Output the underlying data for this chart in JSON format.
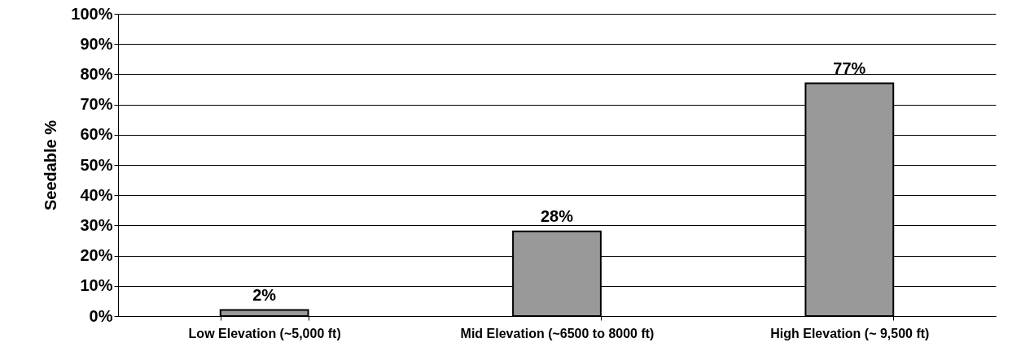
{
  "chart_data": {
    "type": "bar",
    "ylabel": "Seedable %",
    "categories": [
      "Low Elevation (~5,000 ft)",
      "Mid Elevation (~6500 to 8000 ft)",
      "High Elevation (~ 9,500 ft)"
    ],
    "values": [
      2,
      28,
      77
    ],
    "color": "#999999",
    "value_labels": [
      "2%",
      "28%",
      "77%"
    ],
    "ylim": [
      0,
      100
    ],
    "yticks": [
      {
        "value": 0,
        "label": "0%"
      },
      {
        "value": 10,
        "label": "10%"
      },
      {
        "value": 20,
        "label": "20%"
      },
      {
        "value": 30,
        "label": "30%"
      },
      {
        "value": 40,
        "label": "40%"
      },
      {
        "value": 50,
        "label": "50%"
      },
      {
        "value": 60,
        "label": "60%"
      },
      {
        "value": 70,
        "label": "70%"
      },
      {
        "value": 80,
        "label": "80%"
      },
      {
        "value": 90,
        "label": "90%"
      },
      {
        "value": 100,
        "label": "100%"
      }
    ],
    "grid": "y"
  }
}
